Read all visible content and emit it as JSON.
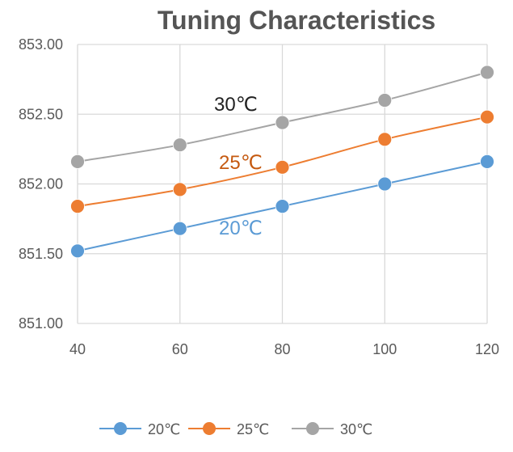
{
  "chart_data": {
    "type": "line",
    "title": "Tuning Characteristics",
    "xlabel": "",
    "ylabel": "",
    "x": [
      40,
      60,
      80,
      100,
      120
    ],
    "x_tick_labels": [
      "40",
      "60",
      "80",
      "100",
      "120"
    ],
    "ylim": [
      851.0,
      853.0
    ],
    "y_ticks": [
      851.0,
      851.5,
      852.0,
      852.5,
      853.0
    ],
    "y_tick_labels": [
      "851.00",
      "851.50",
      "852.00",
      "852.50",
      "853.00"
    ],
    "grid": true,
    "legend_position": "bottom",
    "series": [
      {
        "name": "20℃",
        "color": "#5b9bd5",
        "values": [
          851.52,
          851.68,
          851.84,
          852.0,
          852.16
        ]
      },
      {
        "name": "25℃",
        "color": "#ed7d31",
        "values": [
          851.84,
          851.96,
          852.12,
          852.32,
          852.48
        ]
      },
      {
        "name": "30℃",
        "color": "#a5a5a5",
        "values": [
          852.16,
          852.28,
          852.44,
          852.6,
          852.8
        ]
      }
    ],
    "annotations": [
      {
        "text": "30℃",
        "series": 2,
        "color": "#222222"
      },
      {
        "text": "25℃",
        "series": 1,
        "color": "#c55a11"
      },
      {
        "text": "20℃",
        "series": 0,
        "color": "#5b9bd5"
      }
    ]
  }
}
